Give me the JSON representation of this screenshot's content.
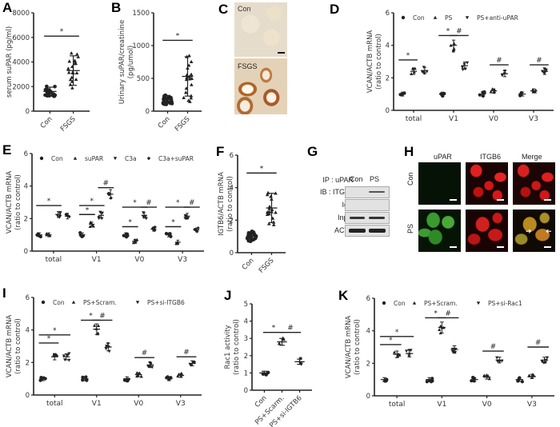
{
  "panels": {
    "A": {
      "label": "A"
    },
    "B": {
      "label": "B"
    },
    "C": {
      "label": "C",
      "top_label": "Con",
      "bottom_label": "FSGS"
    },
    "D": {
      "label": "D"
    },
    "E": {
      "label": "E"
    },
    "F": {
      "label": "F"
    },
    "G": {
      "label": "G",
      "header_left": "IP : uPAR",
      "columns": [
        "Con",
        "PS"
      ],
      "rows": [
        "IB : ITGB6",
        "IgG",
        "Input",
        "ACTB"
      ]
    },
    "H": {
      "label": "H",
      "columns": [
        "uPAR",
        "ITGB6",
        "Merge"
      ],
      "rows": [
        "Con",
        "PS"
      ]
    },
    "I": {
      "label": "I"
    },
    "J": {
      "label": "J"
    },
    "K": {
      "label": "K"
    }
  },
  "chart_data": [
    {
      "id": "A",
      "type": "scatter",
      "categories": [
        "Con",
        "FSGS"
      ],
      "ylabel": "serum suPAR (pg/ml)",
      "ylim": [
        0,
        8000
      ],
      "yticks": [
        0,
        2000,
        4000,
        6000,
        8000
      ],
      "means": [
        1600,
        3300
      ],
      "sd": [
        350,
        1200
      ],
      "significance": [
        {
          "from": 0,
          "to": 1,
          "mark": "*",
          "y": 6100
        }
      ]
    },
    {
      "id": "B",
      "type": "scatter",
      "categories": [
        "Con",
        "FSGS"
      ],
      "ylabel": "Urinary suPAR/creatinine (pg/umol)",
      "ylim": [
        0,
        1500
      ],
      "yticks": [
        0,
        500,
        1000,
        1500
      ],
      "means": [
        180,
        530
      ],
      "sd": [
        60,
        300
      ],
      "significance": [
        {
          "from": 0,
          "to": 1,
          "mark": "*",
          "y": 1080
        }
      ]
    },
    {
      "id": "D",
      "type": "scatter",
      "categories": [
        "total",
        "V1",
        "V0",
        "V3"
      ],
      "ylabel": "VCAN/ACTB mRNA (ratio to control)",
      "ylim": [
        0,
        6
      ],
      "yticks": [
        0,
        2,
        4,
        6
      ],
      "legend": [
        "Con",
        "PS",
        "PS+anti-uPAR"
      ],
      "series": [
        {
          "name": "Con",
          "marker": "circle",
          "values": [
            1.0,
            1.0,
            1.0,
            1.0
          ]
        },
        {
          "name": "PS",
          "marker": "triangle-up",
          "values": [
            2.4,
            4.0,
            1.2,
            1.2
          ]
        },
        {
          "name": "PS+anti-uPAR",
          "marker": "triangle-down",
          "values": [
            2.45,
            2.75,
            2.25,
            2.4
          ]
        }
      ],
      "significance": [
        {
          "group": 0,
          "from": 0,
          "to": 1,
          "mark": "*",
          "y": 3.1
        },
        {
          "group": 1,
          "from": 0,
          "to": 1,
          "mark": "*",
          "y": 4.6
        },
        {
          "group": 1,
          "from": 1,
          "to": 2,
          "mark": "#",
          "y": 4.6
        },
        {
          "group": 2,
          "from": 1,
          "to": 2,
          "mark": "#",
          "y": 2.8
        },
        {
          "group": 3,
          "from": 1,
          "to": 2,
          "mark": "#",
          "y": 2.8
        }
      ]
    },
    {
      "id": "E",
      "type": "scatter",
      "categories": [
        "total",
        "V1",
        "V0",
        "V3"
      ],
      "ylabel": "VCAN/ACTB mRNA (ratio to control)",
      "ylim": [
        0,
        6
      ],
      "yticks": [
        0,
        2,
        4,
        6
      ],
      "legend": [
        "Con",
        "suPAR",
        "C3a",
        "C3a+suPAR"
      ],
      "series": [
        {
          "name": "Con",
          "marker": "circle",
          "values": [
            1.0,
            1.0,
            1.0,
            1.0
          ]
        },
        {
          "name": "suPAR",
          "marker": "triangle-up",
          "values": [
            1.0,
            1.65,
            0.6,
            0.55
          ]
        },
        {
          "name": "C3a",
          "marker": "triangle-down",
          "values": [
            2.25,
            2.2,
            2.2,
            2.15
          ]
        },
        {
          "name": "C3a+suPAR",
          "marker": "diamond",
          "values": [
            2.15,
            3.5,
            1.35,
            1.3
          ]
        }
      ],
      "significance": [
        {
          "group": 0,
          "from": 0,
          "to": 2,
          "mark": "*",
          "y": 2.8
        },
        {
          "group": 1,
          "from": 0,
          "to": 1,
          "mark": "*",
          "y": 2.25
        },
        {
          "group": 1,
          "from": 0,
          "to": 2,
          "mark": "*",
          "y": 2.8
        },
        {
          "group": 1,
          "from": 2,
          "to": 3,
          "mark": "#",
          "y": 3.9
        },
        {
          "group": 2,
          "from": 0,
          "to": 1,
          "mark": "*",
          "y": 1.5
        },
        {
          "group": 2,
          "from": 0,
          "to": 2,
          "mark": "*",
          "y": 2.7
        },
        {
          "group": 2,
          "from": 2,
          "to": 3,
          "mark": "#",
          "y": 2.7
        },
        {
          "group": 3,
          "from": 0,
          "to": 1,
          "mark": "*",
          "y": 1.5
        },
        {
          "group": 3,
          "from": 0,
          "to": 2,
          "mark": "*",
          "y": 2.7
        },
        {
          "group": 3,
          "from": 2,
          "to": 3,
          "mark": "#",
          "y": 2.7
        }
      ]
    },
    {
      "id": "F",
      "type": "scatter",
      "categories": [
        "Con",
        "FSGS"
      ],
      "ylabel": "IGTB6/ACTB mRNA (ratio to control)",
      "ylim": [
        0,
        6
      ],
      "yticks": [
        0,
        2,
        4,
        6
      ],
      "means": [
        1.0,
        2.75
      ],
      "sd": [
        0.25,
        0.9
      ],
      "significance": [
        {
          "from": 0,
          "to": 1,
          "mark": "*",
          "y": 4.9
        }
      ]
    },
    {
      "id": "I",
      "type": "scatter",
      "categories": [
        "total",
        "V1",
        "V0",
        "V3"
      ],
      "ylabel": "VCAN/ACTB mRNA (ratio to control)",
      "ylim": [
        0,
        6
      ],
      "yticks": [
        0,
        2,
        4,
        6
      ],
      "legend": [
        "Con",
        "PS+Scram.",
        "PS+si-ITGB6"
      ],
      "series": [
        {
          "name": "Con",
          "marker": "circle",
          "values": [
            1.0,
            1.0,
            1.0,
            1.0
          ]
        },
        {
          "name": "PS+Scram.",
          "marker": "triangle-up",
          "values": [
            2.35,
            4.05,
            1.25,
            1.2
          ]
        },
        {
          "name": "PS+si-ITGB6",
          "marker": "triangle-down",
          "values": [
            2.35,
            2.95,
            1.85,
            1.95
          ]
        }
      ],
      "significance": [
        {
          "group": 0,
          "from": 0,
          "to": 1,
          "mark": "*",
          "y": 3.2
        },
        {
          "group": 0,
          "from": 0,
          "to": 2,
          "mark": "*",
          "y": 3.7
        },
        {
          "group": 1,
          "from": 0,
          "to": 1,
          "mark": "*",
          "y": 4.6
        },
        {
          "group": 1,
          "from": 1,
          "to": 2,
          "mark": "#",
          "y": 4.6
        },
        {
          "group": 2,
          "from": 1,
          "to": 2,
          "mark": "#",
          "y": 2.3
        },
        {
          "group": 3,
          "from": 1,
          "to": 2,
          "mark": "#",
          "y": 2.35
        }
      ]
    },
    {
      "id": "J",
      "type": "scatter",
      "categories": [
        "Con",
        "PS+Scarm.",
        "PS+si-IGTB6"
      ],
      "ylabel": "Rac1 activity (ratio to control)",
      "ylim": [
        0,
        5
      ],
      "yticks": [
        0,
        1,
        2,
        3,
        4,
        5
      ],
      "means": [
        1.0,
        2.8,
        1.65
      ],
      "sd": [
        0.1,
        0.2,
        0.15
      ],
      "significance": [
        {
          "from": 0,
          "to": 1,
          "mark": "*",
          "y": 3.35
        },
        {
          "from": 1,
          "to": 2,
          "mark": "#",
          "y": 3.35
        }
      ]
    },
    {
      "id": "K",
      "type": "scatter",
      "categories": [
        "total",
        "V1",
        "V0",
        "V3"
      ],
      "ylabel": "VCAN/ACTB mRNA (ratio to control)",
      "ylim": [
        0,
        6
      ],
      "yticks": [
        0,
        2,
        4,
        6
      ],
      "legend": [
        "Con",
        "PS+Scram.",
        "PS+si-Rac1"
      ],
      "series": [
        {
          "name": "Con",
          "marker": "circle",
          "values": [
            1.0,
            1.0,
            1.0,
            1.0
          ]
        },
        {
          "name": "PS+Scram.",
          "marker": "triangle-up",
          "values": [
            2.55,
            4.2,
            1.15,
            1.2
          ]
        },
        {
          "name": "PS+si-Rac1",
          "marker": "triangle-down",
          "values": [
            2.6,
            2.85,
            2.2,
            2.2
          ]
        }
      ],
      "significance": [
        {
          "group": 0,
          "from": 0,
          "to": 1,
          "mark": "*",
          "y": 3.15
        },
        {
          "group": 0,
          "from": 0,
          "to": 2,
          "mark": "*",
          "y": 3.65
        },
        {
          "group": 1,
          "from": 0,
          "to": 1,
          "mark": "*",
          "y": 4.8
        },
        {
          "group": 1,
          "from": 1,
          "to": 2,
          "mark": "#",
          "y": 4.8
        },
        {
          "group": 2,
          "from": 1,
          "to": 2,
          "mark": "#",
          "y": 2.75
        },
        {
          "group": 3,
          "from": 1,
          "to": 2,
          "mark": "#",
          "y": 3.0
        }
      ]
    }
  ]
}
